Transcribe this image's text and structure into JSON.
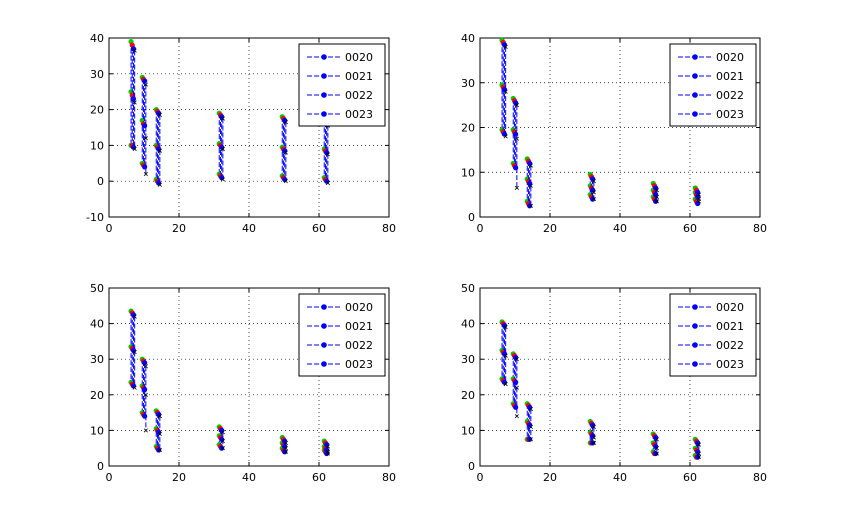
{
  "colors": {
    "background": "#ffffff",
    "axes": "#000000",
    "grid": "#000000",
    "series_line": "#0000ff",
    "marker_a": "#00cc00",
    "marker_b": "#ff0000",
    "marker_c": "#0000ff",
    "marker_d": "#000000"
  },
  "chart_data": [
    {
      "type": "line",
      "panel": "top-left",
      "xlim": [
        0,
        80
      ],
      "ylim": [
        -10,
        40
      ],
      "xticks": [
        0,
        20,
        40,
        60,
        80
      ],
      "yticks": [
        -10,
        0,
        10,
        20,
        30,
        40
      ],
      "xtick_labels": [
        "0",
        "20",
        "40",
        "60",
        "80"
      ],
      "ytick_labels": [
        "-10",
        "0",
        "10",
        "20",
        "30",
        "40"
      ],
      "grid": true,
      "legend_position": "top-right",
      "x": [
        6.3,
        9.5,
        13.5,
        31.5,
        49.5,
        61.5
      ],
      "series": [
        {
          "name": "0020",
          "top": [
            39,
            29,
            20,
            19,
            18,
            17
          ],
          "mid": [
            25,
            17,
            10,
            10.5,
            9.5,
            9
          ],
          "low": [
            10,
            5,
            0.5,
            2,
            1.5,
            1
          ]
        },
        {
          "name": "0021",
          "top": [
            38,
            28.5,
            19.5,
            18.5,
            17.5,
            16.5
          ],
          "mid": [
            24,
            16,
            9.5,
            10,
            9,
            8.5
          ],
          "low": [
            10,
            4.5,
            0,
            1.5,
            1,
            0.5
          ]
        },
        {
          "name": "0022",
          "top": [
            37,
            28,
            19,
            18,
            17,
            16
          ],
          "mid": [
            23,
            15.5,
            9,
            9.5,
            8.5,
            8
          ],
          "low": [
            9.5,
            4,
            -0.5,
            1,
            0.5,
            0
          ]
        },
        {
          "name": "0023",
          "top": [
            36.5,
            27,
            18.5,
            17.5,
            16.5,
            15.5
          ],
          "mid": [
            22,
            12,
            8.5,
            9,
            8,
            7.5
          ],
          "low": [
            9,
            2,
            -1,
            0.5,
            0,
            -0.5
          ]
        }
      ]
    },
    {
      "type": "line",
      "panel": "top-right",
      "xlim": [
        0,
        80
      ],
      "ylim": [
        0,
        40
      ],
      "xticks": [
        0,
        20,
        40,
        60,
        80
      ],
      "yticks": [
        0,
        10,
        20,
        30,
        40
      ],
      "xtick_labels": [
        "0",
        "20",
        "40",
        "60",
        "80"
      ],
      "ytick_labels": [
        "0",
        "10",
        "20",
        "30",
        "40"
      ],
      "grid": true,
      "legend_position": "top-right",
      "x": [
        6.3,
        9.5,
        13.5,
        31.5,
        49.5,
        61.5
      ],
      "series": [
        {
          "name": "0020",
          "top": [
            39.5,
            26.5,
            13,
            9.5,
            7.5,
            6.5
          ],
          "mid": [
            29.5,
            19.5,
            8.5,
            7,
            6,
            5.5
          ],
          "low": [
            19.5,
            12,
            3.5,
            5,
            4.5,
            4
          ]
        },
        {
          "name": "0021",
          "top": [
            39,
            26,
            12.5,
            9,
            7,
            6
          ],
          "mid": [
            29,
            19,
            8,
            6.5,
            5.5,
            5
          ],
          "low": [
            19,
            11.5,
            3,
            4.5,
            4,
            3.5
          ]
        },
        {
          "name": "0022",
          "top": [
            38.5,
            25.5,
            12,
            8.5,
            6.5,
            5.5
          ],
          "mid": [
            28.5,
            18.5,
            7.5,
            6,
            5,
            4.5
          ],
          "low": [
            18.5,
            11,
            2.5,
            4,
            3.5,
            3
          ]
        },
        {
          "name": "0023",
          "top": [
            38,
            25,
            11.5,
            8,
            6,
            5
          ],
          "mid": [
            28,
            17.5,
            7,
            5.5,
            4.5,
            4
          ],
          "low": [
            18,
            6.5,
            2.5,
            4,
            3.5,
            3.5
          ]
        }
      ]
    },
    {
      "type": "line",
      "panel": "bottom-left",
      "xlim": [
        0,
        80
      ],
      "ylim": [
        0,
        50
      ],
      "xticks": [
        0,
        20,
        40,
        60,
        80
      ],
      "yticks": [
        0,
        10,
        20,
        30,
        40,
        50
      ],
      "xtick_labels": [
        "0",
        "20",
        "40",
        "60",
        "80"
      ],
      "ytick_labels": [
        "0",
        "10",
        "20",
        "30",
        "40",
        "50"
      ],
      "grid": true,
      "legend_position": "top-right",
      "x": [
        6.3,
        9.5,
        13.5,
        31.5,
        49.5,
        61.5
      ],
      "series": [
        {
          "name": "0020",
          "top": [
            43.5,
            30,
            15.5,
            11,
            8,
            7
          ],
          "mid": [
            33.5,
            22.5,
            10.5,
            8.5,
            6.5,
            5.5
          ],
          "low": [
            23.5,
            15,
            5.5,
            6,
            5,
            4.5
          ]
        },
        {
          "name": "0021",
          "top": [
            43,
            29.5,
            15,
            10.5,
            7.5,
            6.5
          ],
          "mid": [
            33,
            22,
            10,
            8,
            6,
            5
          ],
          "low": [
            23,
            14.5,
            5,
            5.5,
            4.5,
            4
          ]
        },
        {
          "name": "0022",
          "top": [
            42.5,
            29,
            14.5,
            10,
            7,
            6
          ],
          "mid": [
            32.5,
            21.5,
            9.5,
            7.5,
            5.5,
            4.5
          ],
          "low": [
            22.5,
            14,
            4.5,
            5,
            4,
            3.5
          ]
        },
        {
          "name": "0023",
          "top": [
            42,
            28,
            14,
            9.5,
            6.5,
            5.5
          ],
          "mid": [
            32,
            20,
            9,
            7,
            5,
            4
          ],
          "low": [
            22,
            10,
            4.5,
            5,
            4,
            3.5
          ]
        }
      ]
    },
    {
      "type": "line",
      "panel": "bottom-right",
      "xlim": [
        0,
        80
      ],
      "ylim": [
        0,
        50
      ],
      "xticks": [
        0,
        20,
        40,
        60,
        80
      ],
      "yticks": [
        0,
        10,
        20,
        30,
        40,
        50
      ],
      "xtick_labels": [
        "0",
        "20",
        "40",
        "60",
        "80"
      ],
      "ytick_labels": [
        "0",
        "10",
        "20",
        "30",
        "40",
        "50"
      ],
      "grid": true,
      "legend_position": "top-right",
      "x": [
        6.3,
        9.5,
        13.5,
        31.5,
        49.5,
        61.5
      ],
      "series": [
        {
          "name": "0020",
          "top": [
            40.5,
            31.5,
            17.5,
            12.5,
            9,
            7.5
          ],
          "mid": [
            32.5,
            24.5,
            12.5,
            9.5,
            6.5,
            5
          ],
          "low": [
            24.5,
            17.5,
            7.5,
            6.5,
            4,
            3
          ]
        },
        {
          "name": "0021",
          "top": [
            40,
            31,
            17,
            12,
            8.5,
            7
          ],
          "mid": [
            32,
            24,
            12,
            9,
            6,
            4.5
          ],
          "low": [
            24,
            17,
            7.5,
            6.5,
            3.5,
            2.5
          ]
        },
        {
          "name": "0022",
          "top": [
            39.5,
            30.5,
            16.5,
            11.5,
            8,
            6.5
          ],
          "mid": [
            31.5,
            23.5,
            11.5,
            8.5,
            5.5,
            4
          ],
          "low": [
            23.5,
            16.5,
            7.5,
            6.5,
            3.5,
            2.5
          ]
        },
        {
          "name": "0023",
          "top": [
            39,
            30,
            16,
            11,
            7.5,
            6
          ],
          "mid": [
            31,
            22,
            11,
            8,
            5,
            3.5
          ],
          "low": [
            23,
            14,
            7.5,
            6.5,
            3.5,
            2.5
          ]
        }
      ]
    }
  ]
}
